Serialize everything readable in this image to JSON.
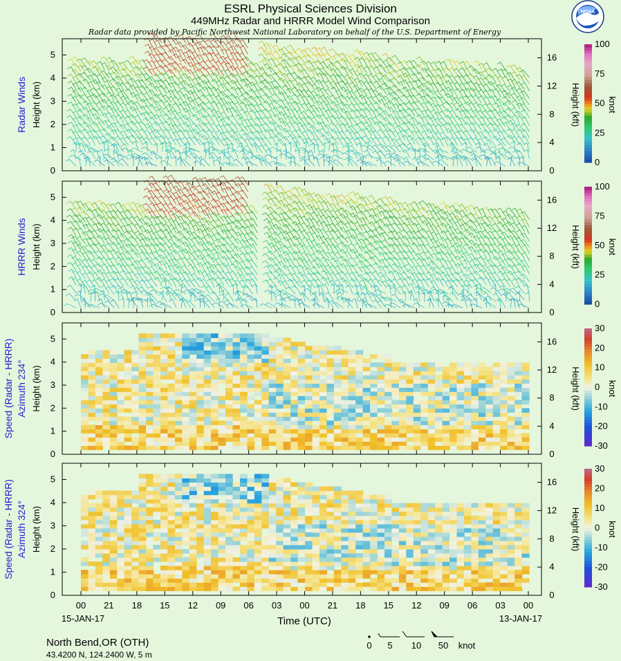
{
  "header": {
    "title": "ESRL Physical Sciences Division",
    "subtitle": "449MHz Radar and HRRR Model Wind Comparison",
    "credit": "Radar data provided by Pacific Northwest National Laboratory on behalf of the U.S. Department of Energy",
    "logo_text": "NOAA"
  },
  "colors": {
    "background": "#e4f6dc",
    "panel_title": "#1f1fd1",
    "divergent_low": "#3b1fc9",
    "divergent_mid": "#f4f4e8",
    "divergent_high": "#d9523a"
  },
  "chart_data": [
    {
      "type": "barbs",
      "panel_label": "Radar Winds",
      "ylabel": "Height (km)",
      "y2label": "Height (kft)",
      "ylim": [
        0,
        5.7
      ],
      "yticks": [
        "0",
        "1",
        "2",
        "3",
        "4",
        "5"
      ],
      "y2ticks": [
        "0",
        "4",
        "8",
        "12",
        "16"
      ],
      "colorbar": {
        "label": "knot",
        "range": [
          0,
          100
        ],
        "ticks": [
          "0",
          "25",
          "50",
          "75",
          "100"
        ]
      },
      "has_gap": false
    },
    {
      "type": "barbs",
      "panel_label": "HRRR Winds",
      "ylabel": "Height (km)",
      "y2label": "Height (kft)",
      "ylim": [
        0,
        5.7
      ],
      "yticks": [
        "0",
        "1",
        "2",
        "3",
        "4",
        "5"
      ],
      "y2ticks": [
        "0",
        "4",
        "8",
        "12",
        "16"
      ],
      "colorbar": {
        "label": "knot",
        "range": [
          0,
          100
        ],
        "ticks": [
          "0",
          "25",
          "50",
          "75",
          "100"
        ]
      },
      "has_gap": true
    },
    {
      "type": "heatmap",
      "panel_label": "Speed (Radar - HRRR)",
      "panel_label2": "Azimuth 234°",
      "ylabel": "Height (km)",
      "y2label": "Height (kft)",
      "ylim": [
        0,
        5.7
      ],
      "yticks": [
        "0",
        "1",
        "2",
        "3",
        "4",
        "5"
      ],
      "y2ticks": [
        "0",
        "4",
        "8",
        "12",
        "16"
      ],
      "colorbar": {
        "label": "knot",
        "range": [
          -30,
          30
        ],
        "ticks": [
          "-30",
          "-20",
          "-10",
          "0",
          "10",
          "20",
          "30"
        ]
      },
      "has_gap": true
    },
    {
      "type": "heatmap",
      "panel_label": "Speed (Radar - HRRR)",
      "panel_label2": "Azimuth 324°",
      "ylabel": "Height (km)",
      "y2label": "Height (kft)",
      "ylim": [
        0,
        5.7
      ],
      "yticks": [
        "0",
        "1",
        "2",
        "3",
        "4",
        "5"
      ],
      "y2ticks": [
        "0",
        "4",
        "8",
        "12",
        "16"
      ],
      "colorbar": {
        "label": "knot",
        "range": [
          -30,
          30
        ],
        "ticks": [
          "-30",
          "-20",
          "-10",
          "0",
          "10",
          "20",
          "30"
        ]
      },
      "has_gap": true
    }
  ],
  "x_axis": {
    "label": "Time (UTC)",
    "ticks": [
      "00",
      "21",
      "18",
      "15",
      "12",
      "09",
      "06",
      "03",
      "00",
      "21",
      "18",
      "15",
      "12",
      "09",
      "06",
      "03",
      "00"
    ],
    "start_date": "15-JAN-17",
    "end_date": "13-JAN-17"
  },
  "station": {
    "name": "North Bend,OR (OTH)",
    "coords": "43.4200 N, 124.2400 W, 5 m"
  },
  "barb_legend": {
    "values": [
      "0",
      "5",
      "10",
      "50"
    ],
    "unit": "knot"
  }
}
